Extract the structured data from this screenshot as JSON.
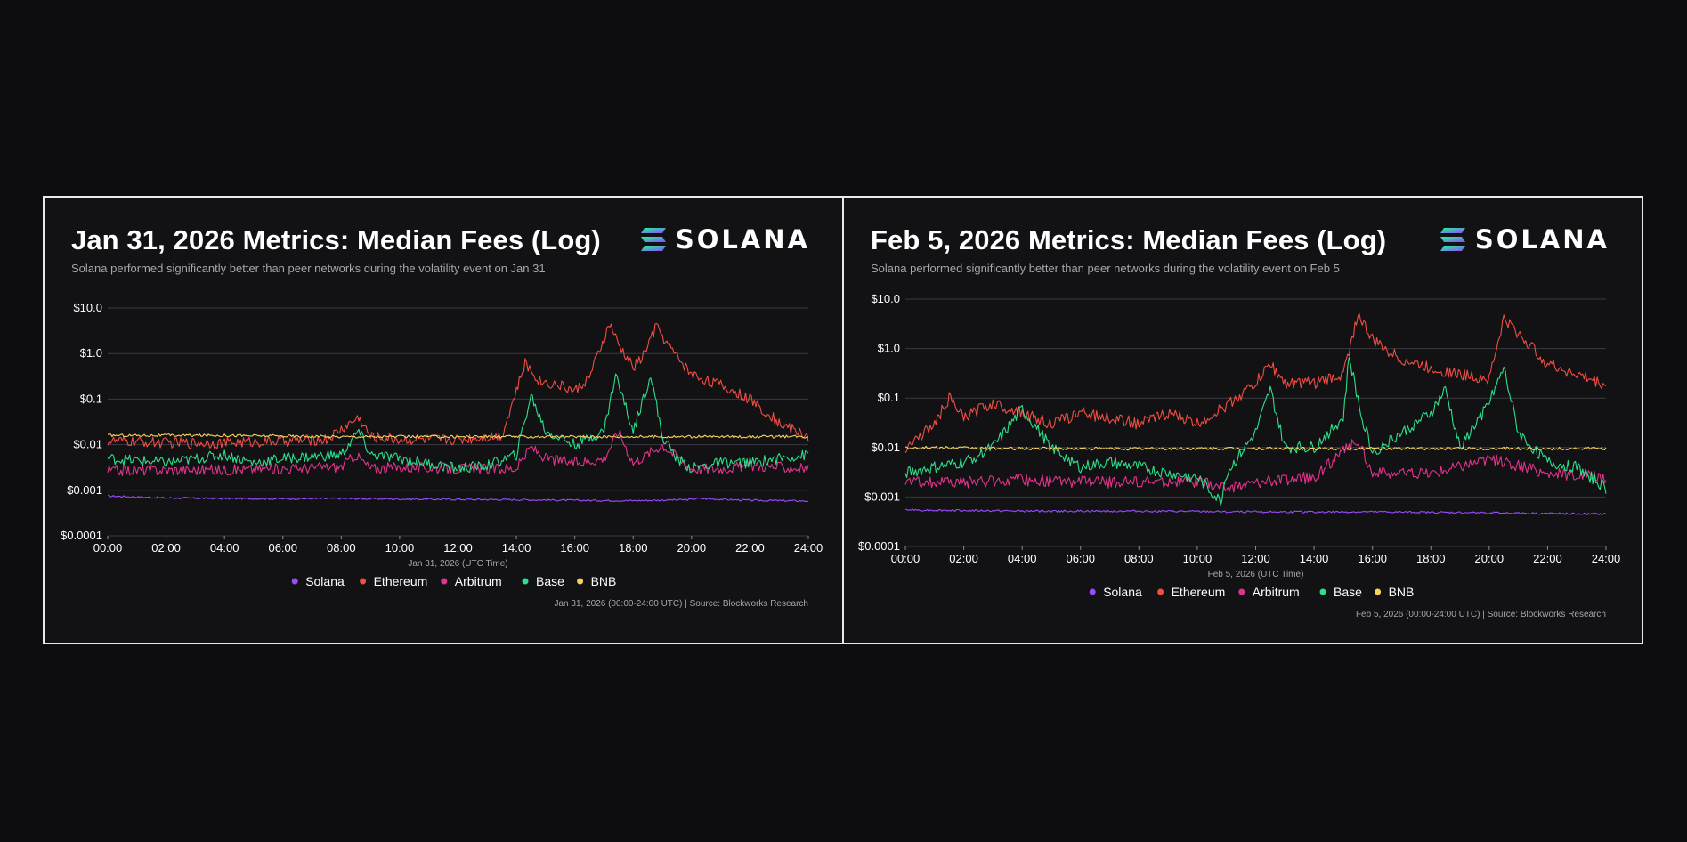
{
  "brand": {
    "name": "SOLANA"
  },
  "chart_data": [
    {
      "type": "line",
      "title": "Jan 31, 2026 Metrics: Median Fees (Log)",
      "subtitle": "Solana performed significantly better than peer networks during the volatility event on Jan 31",
      "xlabel": "Jan 31, 2026 (UTC Time)",
      "ylabel": "",
      "yscale": "log",
      "ylim": [
        0.0001,
        10
      ],
      "y_ticks": [
        0.0001,
        0.001,
        0.01,
        0.1,
        1.0,
        10.0
      ],
      "y_tick_labels": [
        "$0.0001",
        "$0.001",
        "$0.01",
        "$0.1",
        "$1.0",
        "$10.0"
      ],
      "xlim": [
        0,
        24
      ],
      "x_ticks": [
        "00:00",
        "02:00",
        "04:00",
        "06:00",
        "08:00",
        "10:00",
        "12:00",
        "14:00",
        "16:00",
        "18:00",
        "20:00",
        "22:00",
        "24:00"
      ],
      "grid": true,
      "legend_position": "bottom-center",
      "source": "Jan 31, 2026 (00:00-24:00 UTC) | Source: Blockworks Research",
      "series": [
        {
          "name": "Solana",
          "color": "#9b4bff",
          "x": [
            0,
            2,
            4,
            6,
            8,
            10,
            12,
            14,
            16,
            18,
            19.9,
            20.2,
            22,
            24
          ],
          "values": [
            0.00075,
            0.00068,
            0.00066,
            0.00065,
            0.00066,
            0.00064,
            0.00063,
            0.00062,
            0.0006,
            0.00059,
            0.00062,
            0.00066,
            0.0006,
            0.00058
          ]
        },
        {
          "name": "Ethereum",
          "color": "#f04d43",
          "x": [
            0,
            2,
            4,
            6,
            7.5,
            8.6,
            9,
            10,
            12,
            13.5,
            14.3,
            14.8,
            15.5,
            16,
            16.5,
            17.2,
            17.5,
            18,
            18.3,
            18.8,
            19.2,
            20,
            21,
            22,
            23,
            24
          ],
          "values": [
            0.012,
            0.011,
            0.011,
            0.012,
            0.013,
            0.04,
            0.015,
            0.013,
            0.013,
            0.016,
            0.6,
            0.25,
            0.2,
            0.15,
            0.3,
            4.5,
            1.5,
            0.5,
            0.8,
            4.0,
            1.5,
            0.35,
            0.2,
            0.1,
            0.03,
            0.015
          ]
        },
        {
          "name": "Arbitrum",
          "color": "#e0338c",
          "x": [
            0,
            2,
            4,
            6,
            8,
            8.5,
            9,
            10,
            12,
            14,
            14.5,
            15,
            16,
            17,
            17.5,
            18,
            19,
            20,
            21,
            22,
            24
          ],
          "values": [
            0.0027,
            0.0028,
            0.0028,
            0.003,
            0.0033,
            0.006,
            0.003,
            0.0032,
            0.003,
            0.003,
            0.009,
            0.005,
            0.004,
            0.005,
            0.02,
            0.004,
            0.01,
            0.003,
            0.003,
            0.0035,
            0.003
          ]
        },
        {
          "name": "Base",
          "color": "#2ddf8a",
          "x": [
            0,
            2,
            4,
            5,
            6,
            8,
            8.6,
            9,
            10,
            12,
            13,
            14,
            14.5,
            15,
            16,
            17,
            17.4,
            18,
            18.6,
            19,
            19.5,
            20,
            21,
            22,
            23,
            24
          ],
          "values": [
            0.005,
            0.004,
            0.006,
            0.004,
            0.005,
            0.006,
            0.02,
            0.006,
            0.005,
            0.003,
            0.0035,
            0.006,
            0.12,
            0.02,
            0.01,
            0.02,
            0.35,
            0.02,
            0.35,
            0.015,
            0.005,
            0.003,
            0.004,
            0.004,
            0.005,
            0.006
          ]
        },
        {
          "name": "BNB",
          "color": "#f4d35e",
          "x": [
            0,
            4,
            8,
            12,
            16,
            20,
            24
          ],
          "values": [
            0.016,
            0.016,
            0.015,
            0.015,
            0.015,
            0.015,
            0.015
          ]
        }
      ]
    },
    {
      "type": "line",
      "title": "Feb 5, 2026 Metrics: Median Fees (Log)",
      "subtitle": "Solana performed significantly better than peer networks during the volatility event on Feb 5",
      "xlabel": "Feb 5, 2026 (UTC Time)",
      "ylabel": "",
      "yscale": "log",
      "ylim": [
        0.0001,
        10
      ],
      "y_ticks": [
        0.0001,
        0.001,
        0.01,
        0.1,
        1.0,
        10.0
      ],
      "y_tick_labels": [
        "$0.0001",
        "$0.001",
        "$0.01",
        "$0.1",
        "$1.0",
        "$10.0"
      ],
      "xlim": [
        0,
        24
      ],
      "x_ticks": [
        "00:00",
        "02:00",
        "04:00",
        "06:00",
        "08:00",
        "10:00",
        "12:00",
        "14:00",
        "16:00",
        "18:00",
        "20:00",
        "22:00",
        "24:00"
      ],
      "grid": true,
      "legend_position": "bottom-center",
      "source": "Feb 5, 2026 (00:00-24:00 UTC) | Source: Blockworks Research",
      "series": [
        {
          "name": "Solana",
          "color": "#9b4bff",
          "x": [
            0,
            4,
            8,
            12,
            16,
            20,
            24
          ],
          "values": [
            0.00055,
            0.00052,
            0.00052,
            0.0005,
            0.0005,
            0.00048,
            0.00045
          ]
        },
        {
          "name": "Ethereum",
          "color": "#f04d43",
          "x": [
            0,
            1,
            1.5,
            2,
            3,
            4,
            5,
            6,
            7,
            8,
            9,
            10,
            11,
            12,
            12.5,
            13,
            14,
            15,
            15.5,
            16,
            17,
            18,
            19,
            20,
            20.5,
            21,
            22,
            23,
            24
          ],
          "values": [
            0.01,
            0.03,
            0.1,
            0.04,
            0.08,
            0.05,
            0.03,
            0.05,
            0.04,
            0.03,
            0.05,
            0.03,
            0.07,
            0.2,
            0.5,
            0.2,
            0.2,
            0.3,
            5.0,
            1.5,
            0.6,
            0.4,
            0.3,
            0.25,
            4.0,
            2.0,
            0.5,
            0.3,
            0.18
          ]
        },
        {
          "name": "Arbitrum",
          "color": "#e0338c",
          "x": [
            0,
            2,
            4,
            6,
            8,
            10,
            11,
            12,
            14,
            15.5,
            16,
            18,
            20,
            22,
            24
          ],
          "values": [
            0.002,
            0.002,
            0.0022,
            0.002,
            0.002,
            0.002,
            0.0015,
            0.002,
            0.0025,
            0.015,
            0.003,
            0.003,
            0.006,
            0.003,
            0.0025
          ]
        },
        {
          "name": "Base",
          "color": "#2ddf8a",
          "x": [
            0,
            1,
            2,
            3,
            4,
            5,
            6,
            7,
            8,
            9,
            10,
            10.8,
            11,
            12,
            12.5,
            13,
            14,
            15,
            15.2,
            15.6,
            16,
            17,
            18,
            18.5,
            19,
            20,
            20.5,
            21,
            22,
            23,
            24
          ],
          "values": [
            0.003,
            0.004,
            0.005,
            0.01,
            0.06,
            0.01,
            0.004,
            0.005,
            0.004,
            0.003,
            0.0025,
            0.0008,
            0.003,
            0.02,
            0.15,
            0.01,
            0.01,
            0.04,
            0.7,
            0.05,
            0.008,
            0.02,
            0.05,
            0.15,
            0.01,
            0.08,
            0.4,
            0.02,
            0.005,
            0.004,
            0.0015
          ]
        },
        {
          "name": "BNB",
          "color": "#f4d35e",
          "x": [
            0,
            4,
            8,
            12,
            16,
            20,
            24
          ],
          "values": [
            0.01,
            0.0095,
            0.0095,
            0.0095,
            0.0095,
            0.0095,
            0.0095
          ]
        }
      ]
    }
  ]
}
